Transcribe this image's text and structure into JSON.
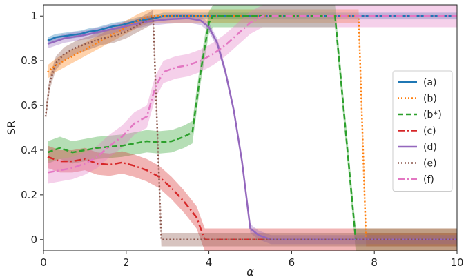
{
  "chart_data": {
    "type": "line",
    "xlabel": "α",
    "ylabel": "SR",
    "xlim": [
      0,
      10
    ],
    "ylim": [
      -0.05,
      1.05
    ],
    "xticks": [
      "0",
      "2",
      "4",
      "6",
      "8",
      "10"
    ],
    "yticks": [
      "0",
      "0.2",
      "0.4",
      "0.6",
      "0.8",
      "1"
    ],
    "grid": false,
    "legend_position": "right",
    "series": [
      {
        "name": "(a)",
        "color": "#1f77b4",
        "style": "solid",
        "x": [
          0.1,
          0.3,
          0.5,
          0.7,
          0.9,
          1.1,
          1.3,
          1.5,
          1.7,
          1.9,
          2.1,
          2.3,
          2.5,
          2.7,
          2.9,
          3.2,
          10
        ],
        "y": [
          0.89,
          0.905,
          0.91,
          0.915,
          0.92,
          0.93,
          0.935,
          0.945,
          0.955,
          0.96,
          0.97,
          0.98,
          0.985,
          0.99,
          1.0,
          1.0,
          1.0
        ],
        "band": 0.015
      },
      {
        "name": "(b)",
        "color": "#ff7f0e",
        "style": "dotted",
        "x": [
          0.1,
          0.3,
          0.5,
          0.7,
          0.9,
          1.1,
          1.3,
          1.5,
          1.7,
          1.9,
          2.1,
          2.3,
          2.5,
          2.6,
          7.62,
          7.8,
          10
        ],
        "y": [
          0.75,
          0.78,
          0.8,
          0.82,
          0.84,
          0.86,
          0.88,
          0.9,
          0.92,
          0.94,
          0.96,
          0.98,
          0.995,
          1.0,
          1.0,
          0.0,
          0.0
        ],
        "band": 0.03
      },
      {
        "name": "(b*)",
        "color": "#2ca02c",
        "style": "dashed",
        "x": [
          0.1,
          0.4,
          0.7,
          1.0,
          1.3,
          1.6,
          1.9,
          2.2,
          2.5,
          2.8,
          3.1,
          3.4,
          3.6,
          3.8,
          4.0,
          4.1,
          7.05,
          7.55,
          10
        ],
        "y": [
          0.39,
          0.41,
          0.39,
          0.4,
          0.41,
          0.415,
          0.42,
          0.43,
          0.44,
          0.435,
          0.44,
          0.46,
          0.48,
          0.75,
          0.97,
          1.0,
          1.0,
          0.0,
          0.0
        ],
        "band": 0.05
      },
      {
        "name": "(c)",
        "color": "#d62728",
        "style": "dashdot",
        "x": [
          0.1,
          0.4,
          0.7,
          1.0,
          1.3,
          1.6,
          1.9,
          2.2,
          2.5,
          2.8,
          3.1,
          3.4,
          3.7,
          3.9,
          10
        ],
        "y": [
          0.37,
          0.35,
          0.35,
          0.36,
          0.34,
          0.335,
          0.345,
          0.33,
          0.31,
          0.28,
          0.23,
          0.17,
          0.1,
          0.0,
          0.0
        ],
        "band": 0.05
      },
      {
        "name": "(d)",
        "color": "#9467bd",
        "style": "solid",
        "x": [
          0.1,
          0.5,
          1.0,
          1.5,
          2.0,
          2.5,
          3.0,
          3.5,
          3.8,
          4.0,
          4.2,
          4.4,
          4.6,
          4.8,
          5.0,
          5.2,
          5.5,
          10
        ],
        "y": [
          0.875,
          0.9,
          0.915,
          0.935,
          0.955,
          0.975,
          0.985,
          0.99,
          0.98,
          0.95,
          0.88,
          0.75,
          0.58,
          0.35,
          0.05,
          0.02,
          0.0,
          0.0
        ],
        "band": 0.02
      },
      {
        "name": "(e)",
        "color": "#8c564b",
        "style": "dotted",
        "x": [
          0.05,
          0.15,
          0.3,
          0.5,
          0.8,
          1.1,
          1.4,
          1.7,
          2.0,
          2.3,
          2.6,
          2.65,
          2.85,
          10
        ],
        "y": [
          0.55,
          0.7,
          0.79,
          0.83,
          0.86,
          0.88,
          0.9,
          0.91,
          0.93,
          0.96,
          0.99,
          1.0,
          0.0,
          0.0
        ],
        "band": 0.03
      },
      {
        "name": "(f)",
        "color": "#e377c2",
        "style": "dashdot",
        "x": [
          0.1,
          0.4,
          0.7,
          1.0,
          1.3,
          1.6,
          1.9,
          2.2,
          2.5,
          2.7,
          2.9,
          3.2,
          3.5,
          3.8,
          4.1,
          4.4,
          4.7,
          5.0,
          5.3,
          10
        ],
        "y": [
          0.3,
          0.31,
          0.32,
          0.34,
          0.37,
          0.42,
          0.46,
          0.52,
          0.55,
          0.68,
          0.75,
          0.77,
          0.78,
          0.8,
          0.83,
          0.87,
          0.92,
          0.97,
          1.0,
          1.0
        ],
        "band": 0.05
      }
    ]
  }
}
